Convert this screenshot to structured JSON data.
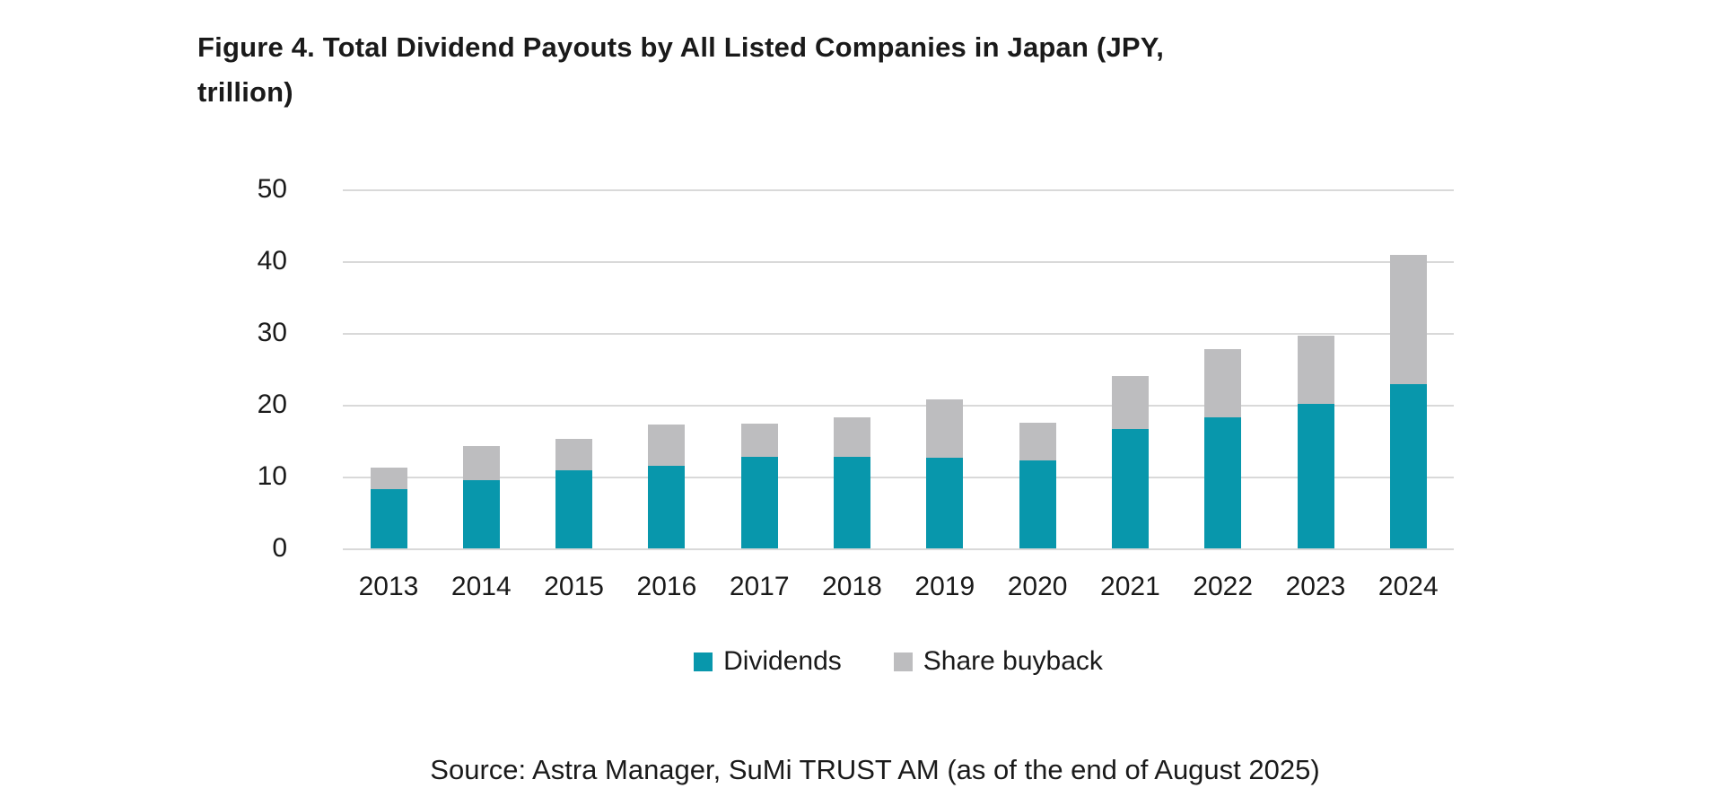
{
  "title": {
    "line1": "Figure 4. Total Dividend Payouts by All Listed Companies in Japan (JPY,",
    "line2": "trillion)"
  },
  "source": "Source: Astra Manager, SuMi TRUST AM (as of the end of August 2025)",
  "colors": {
    "dividends": "#0897ac",
    "share_buyback": "#bdbdbf",
    "gridline": "#d9d9d9",
    "text": "#1a1a1a"
  },
  "chart_data": {
    "type": "bar",
    "stacked": true,
    "title": "Figure 4. Total Dividend Payouts by All Listed Companies in Japan (JPY, trillion)",
    "xlabel": "",
    "ylabel": "",
    "categories": [
      "2013",
      "2014",
      "2015",
      "2016",
      "2017",
      "2018",
      "2019",
      "2020",
      "2021",
      "2022",
      "2023",
      "2024"
    ],
    "series": [
      {
        "name": "Dividends",
        "color": "#0897ac",
        "values": [
          8.3,
          9.5,
          10.9,
          11.5,
          12.8,
          12.8,
          12.6,
          12.3,
          16.6,
          18.3,
          20.1,
          22.9
        ]
      },
      {
        "name": "Share buyback",
        "color": "#bdbdbf",
        "values": [
          2.9,
          4.7,
          4.4,
          5.8,
          4.6,
          5.5,
          8.2,
          5.2,
          7.4,
          9.4,
          9.5,
          18.0
        ]
      }
    ],
    "totals": [
      11.2,
      14.2,
      15.3,
      17.3,
      17.4,
      18.3,
      20.8,
      17.5,
      24.0,
      27.7,
      29.6,
      40.9
    ],
    "ylim": [
      0,
      50
    ],
    "yticks": [
      0,
      10,
      20,
      30,
      40,
      50
    ],
    "grid": true,
    "legend_position": "bottom",
    "legend": [
      "Dividends",
      "Share buyback"
    ]
  }
}
